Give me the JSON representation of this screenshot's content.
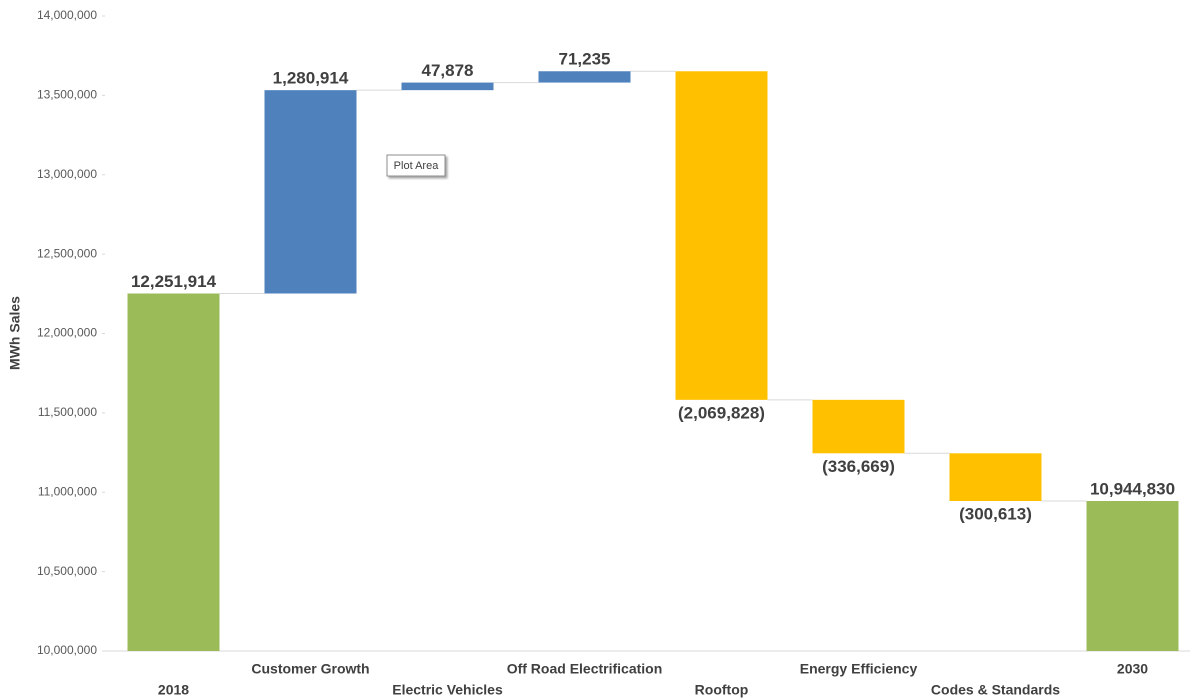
{
  "chart_data": {
    "type": "waterfall",
    "y_label": "MWh Sales",
    "annotation": "Plot Area",
    "categories": [
      "2018",
      "Customer Growth",
      "Electric Vehicles",
      "Off Road Electrification",
      "Rooftop",
      "Energy Efficiency",
      "Codes & Standards",
      "2030"
    ],
    "values": [
      12251914,
      1280914,
      47878,
      71235,
      -2069828,
      -336669,
      -300613,
      10944830
    ],
    "value_labels": [
      "12,251,914",
      "1,280,914",
      "47,878",
      "71,235",
      "(2,069,828)",
      "(336,669)",
      "(300,613)",
      "10,944,830"
    ],
    "is_total": [
      true,
      false,
      false,
      false,
      false,
      false,
      false,
      true
    ],
    "colors": [
      "#9bbb59",
      "#4f81bd",
      "#4f81bd",
      "#4f81bd",
      "#ffc000",
      "#ffc000",
      "#ffc000",
      "#9bbb59"
    ],
    "ylim": [
      10000000,
      14000000
    ],
    "yticks": [
      {
        "value": 10000000,
        "label": "10,000,000"
      },
      {
        "value": 10500000,
        "label": "10,500,000"
      },
      {
        "value": 11000000,
        "label": "11,000,000"
      },
      {
        "value": 11500000,
        "label": "11,500,000"
      },
      {
        "value": 12000000,
        "label": "12,000,000"
      },
      {
        "value": 12500000,
        "label": "12,500,000"
      },
      {
        "value": 13000000,
        "label": "13,000,000"
      },
      {
        "value": 13500000,
        "label": "13,500,000"
      },
      {
        "value": 14000000,
        "label": "14,000,000"
      }
    ],
    "grid": false
  }
}
